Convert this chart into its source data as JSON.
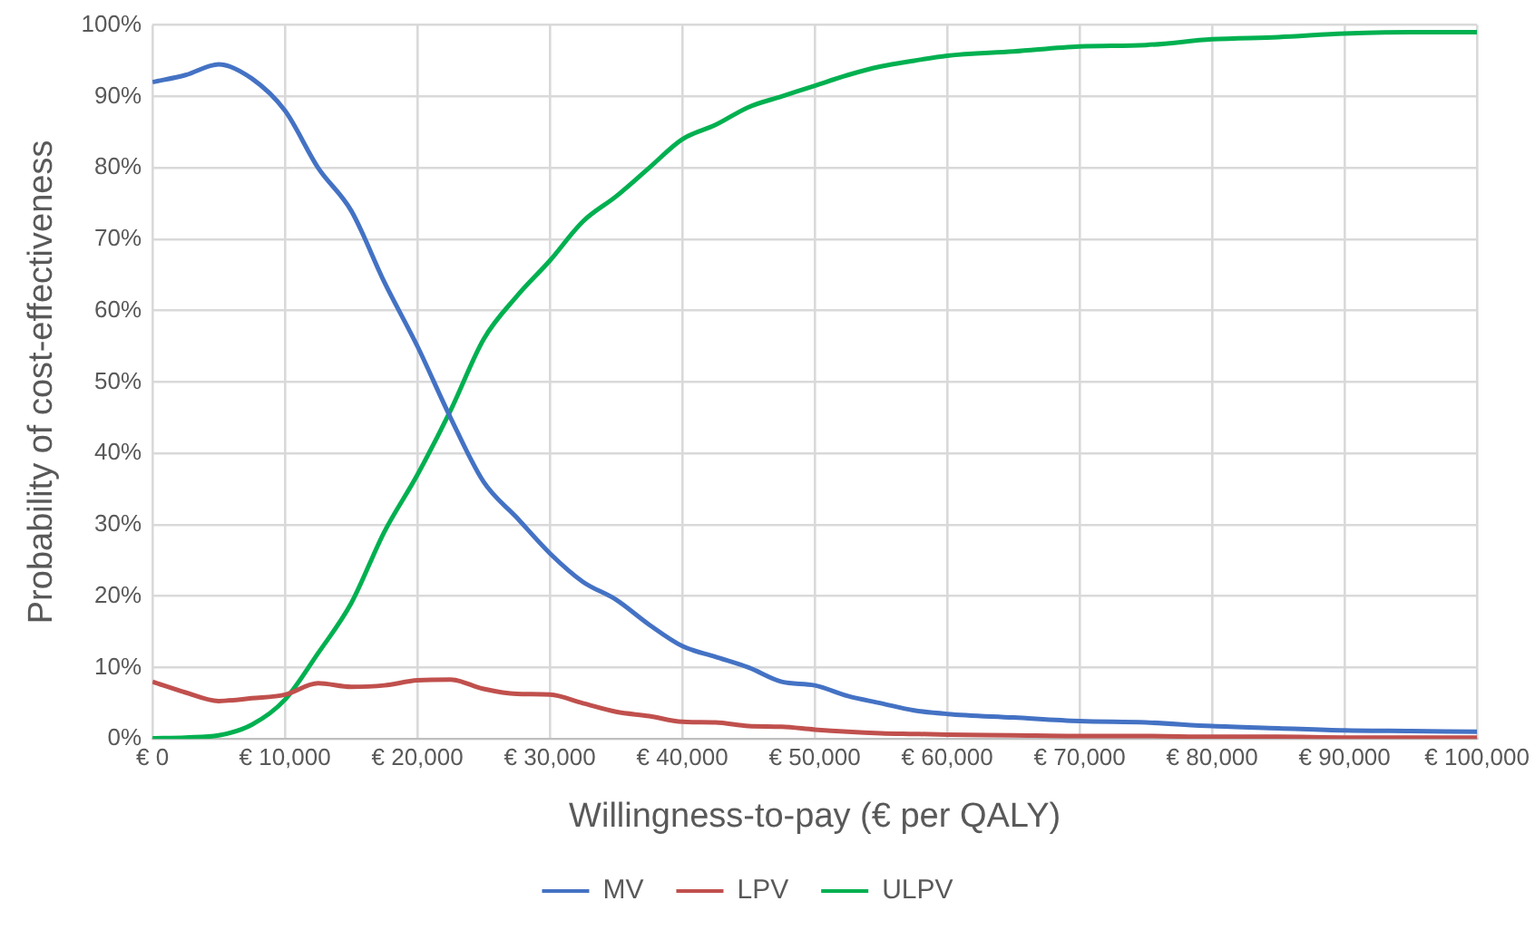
{
  "chart_data": {
    "type": "line",
    "xlabel": "Willingness-to-pay (€ per QALY)",
    "ylabel": "Probability of cost-effectiveness",
    "xlim": [
      0,
      100000
    ],
    "xticks": [
      {
        "value": 0,
        "label": "€ 0"
      },
      {
        "value": 10000,
        "label": "€ 10,000"
      },
      {
        "value": 20000,
        "label": "€ 20,000"
      },
      {
        "value": 30000,
        "label": "€ 30,000"
      },
      {
        "value": 40000,
        "label": "€ 40,000"
      },
      {
        "value": 50000,
        "label": "€ 50,000"
      },
      {
        "value": 60000,
        "label": "€ 60,000"
      },
      {
        "value": 70000,
        "label": "€ 70,000"
      },
      {
        "value": 80000,
        "label": "€ 80,000"
      },
      {
        "value": 90000,
        "label": "€ 90,000"
      },
      {
        "value": 100000,
        "label": "€ 100,000"
      }
    ],
    "ylim": [
      0,
      100
    ],
    "yticks": [
      {
        "value": 0,
        "label": "0%"
      },
      {
        "value": 10,
        "label": "10%"
      },
      {
        "value": 20,
        "label": "20%"
      },
      {
        "value": 30,
        "label": "30%"
      },
      {
        "value": 40,
        "label": "40%"
      },
      {
        "value": 50,
        "label": "50%"
      },
      {
        "value": 60,
        "label": "60%"
      },
      {
        "value": 70,
        "label": "70%"
      },
      {
        "value": 80,
        "label": "80%"
      },
      {
        "value": 90,
        "label": "90%"
      },
      {
        "value": 100,
        "label": "100%"
      }
    ],
    "grid": true,
    "legend": "bottom",
    "marker": "none",
    "line_style": "solid",
    "x": [
      0,
      2500,
      5000,
      7500,
      10000,
      12500,
      15000,
      17500,
      20000,
      22500,
      25000,
      27500,
      30000,
      32500,
      35000,
      37500,
      40000,
      42500,
      45000,
      47500,
      50000,
      52500,
      55000,
      57500,
      60000,
      65000,
      70000,
      75000,
      80000,
      85000,
      90000,
      95000,
      100000
    ],
    "series": [
      {
        "name": "MV",
        "color": "#4472c4",
        "values": [
          92,
          93,
          94.5,
          92.5,
          88,
          80,
          74,
          64,
          55,
          45,
          36,
          31,
          26,
          22,
          19.5,
          16,
          13,
          11.5,
          10,
          8,
          7.5,
          6,
          5,
          4,
          3.5,
          3,
          2.5,
          2.3,
          1.8,
          1.5,
          1.2,
          1.1,
          1
        ]
      },
      {
        "name": "LPV",
        "color": "#c0504d",
        "values": [
          8,
          6.5,
          5.3,
          5.7,
          6.2,
          7.8,
          7.3,
          7.5,
          8.2,
          8.3,
          7,
          6.3,
          6.2,
          5,
          3.8,
          3.2,
          2.4,
          2.3,
          1.8,
          1.7,
          1.3,
          1,
          0.8,
          0.7,
          0.6,
          0.5,
          0.4,
          0.4,
          0.3,
          0.3,
          0.2,
          0.2,
          0.2
        ]
      },
      {
        "name": "ULPV",
        "color": "#00b050",
        "values": [
          0.1,
          0.2,
          0.5,
          2,
          5.5,
          12,
          19,
          29,
          37,
          46,
          56,
          62,
          67,
          72.5,
          76,
          80,
          84,
          86,
          88.5,
          90,
          91.5,
          93,
          94.2,
          95,
          95.7,
          96.3,
          97,
          97.2,
          98,
          98.3,
          98.8,
          99,
          99
        ]
      }
    ]
  }
}
